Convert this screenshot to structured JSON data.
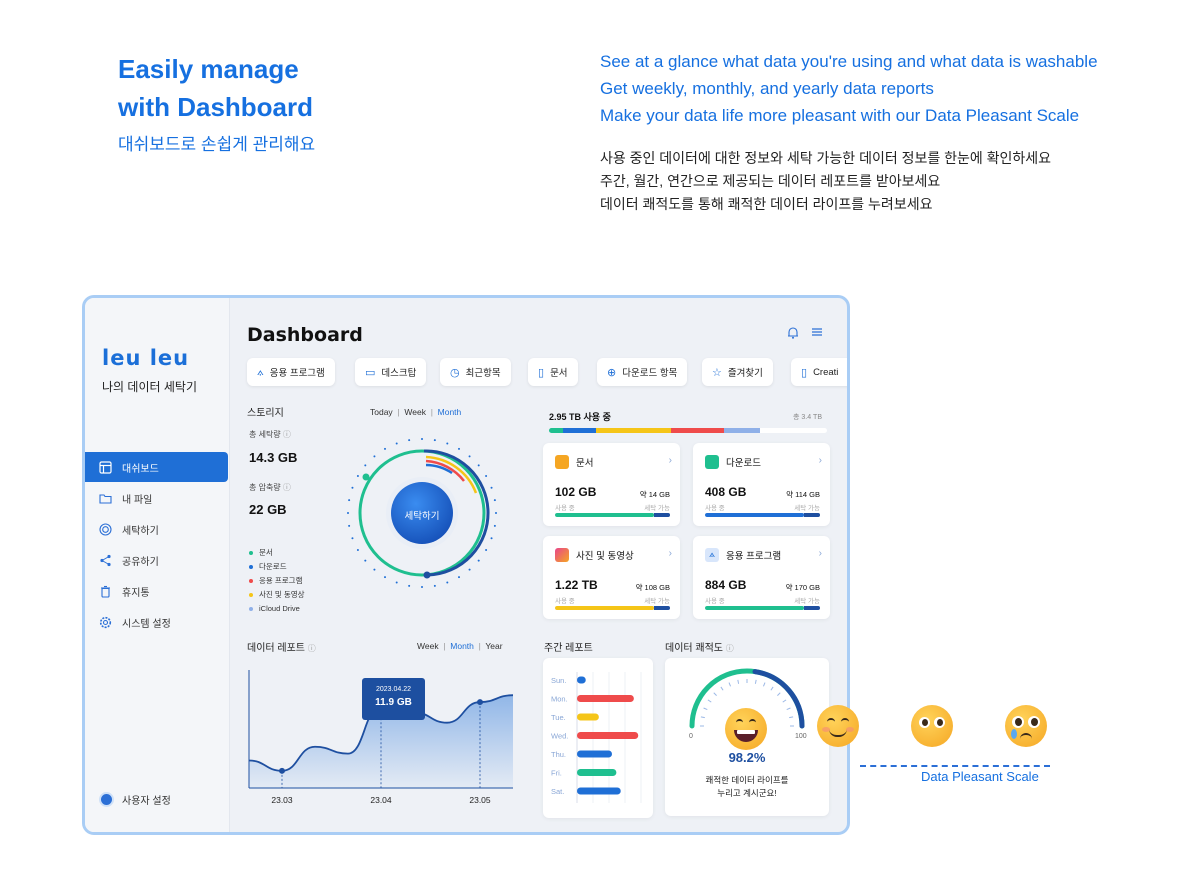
{
  "intro": {
    "title_line1": "Easily manage",
    "title_line2": "with Dashboard",
    "subtitle": "대쉬보드로 손쉽게 관리해요",
    "features_en": [
      "See at a glance what data you're using and what data is washable",
      "Get weekly, monthly, and yearly data reports",
      "Make your data life more pleasant with our Data Pleasant Scale"
    ],
    "features_kr": [
      "사용 중인 데이터에 대한 정보와 세탁 가능한 데이터 정보를 한눈에 확인하세요",
      "주간, 월간, 연간으로 제공되는 데이터 레포트를 받아보세요",
      "데이터 쾌적도를 통해 쾌적한 데이터 라이프를 누려보세요"
    ]
  },
  "sidebar": {
    "logo": "leu leu",
    "app_name": "나의 데이터 세탁기",
    "items": [
      {
        "label": "대쉬보드",
        "icon": "layout-icon",
        "active": true
      },
      {
        "label": "내 파일",
        "icon": "folder-icon",
        "active": false
      },
      {
        "label": "세탁하기",
        "icon": "wash-icon",
        "active": false
      },
      {
        "label": "공유하기",
        "icon": "share-icon",
        "active": false
      },
      {
        "label": "휴지통",
        "icon": "trash-icon",
        "active": false
      },
      {
        "label": "시스템 설정",
        "icon": "gear-icon",
        "active": false
      }
    ],
    "user_settings": "사용자 설정"
  },
  "header": {
    "title": "Dashboard",
    "chips": [
      "응용 프로그램",
      "데스크탑",
      "최근항목",
      "문서",
      "다운로드 항목",
      "즐겨찾기",
      "Creati"
    ]
  },
  "storage": {
    "title": "스토리지",
    "segments": [
      "Today",
      "Week",
      "Month"
    ],
    "active_segment": "Month",
    "total_wash_label": "총 세탁량",
    "total_wash": "14.3 GB",
    "total_compress_label": "총 압축량",
    "total_compress": "22 GB",
    "wash_button": "세탁하기",
    "legend": [
      {
        "label": "문서",
        "color": "#1fbf8f"
      },
      {
        "label": "다운로드",
        "color": "#1f6fd6"
      },
      {
        "label": "응용 프로그램",
        "color": "#ef4b4b"
      },
      {
        "label": "사진 및 동영상",
        "color": "#f5c518"
      },
      {
        "label": "iCloud Drive",
        "color": "#8fb0e8"
      }
    ]
  },
  "usage": {
    "label": "2.95 TB 사용 중",
    "total": "총 3.4 TB",
    "fractions": [
      {
        "color": "#1fbf8f",
        "value": 0.05
      },
      {
        "color": "#1f6fd6",
        "value": 0.12
      },
      {
        "color": "#f5c518",
        "value": 0.27
      },
      {
        "color": "#ef4b4b",
        "value": 0.19
      },
      {
        "color": "#8fb0e8",
        "value": 0.13
      }
    ]
  },
  "file_cards": [
    {
      "name": "문서",
      "size": "102 GB",
      "approx": "약 14 GB",
      "used": "사용 중",
      "washable": "세탁 가능",
      "color": "#1fbf8f",
      "icon": "document-icon",
      "icon_color": "#f5a623",
      "fill": 0.86
    },
    {
      "name": "다운로드",
      "size": "408 GB",
      "approx": "약 114 GB",
      "used": "사용 중",
      "washable": "세탁 가능",
      "color": "#1f6fd6",
      "icon": "download-icon",
      "icon_color": "#1fbf8f",
      "fill": 0.86
    },
    {
      "name": "사진 및 동영상",
      "size": "1.22 TB",
      "approx": "약 108 GB",
      "used": "사용 중",
      "washable": "세탁 가능",
      "color": "#f5c518",
      "icon": "photo-icon",
      "icon_color": "#e8458b",
      "fill": 0.86
    },
    {
      "name": "응용 프로그램",
      "size": "884 GB",
      "approx": "약 170 GB",
      "used": "사용 중",
      "washable": "세탁 가능",
      "color": "#1fbf8f",
      "icon": "app-icon",
      "icon_color": "#1f6fd6",
      "fill": 0.86
    }
  ],
  "report": {
    "title": "데이터 레포트",
    "segments": [
      "Week",
      "Month",
      "Year"
    ],
    "active_segment": "Month",
    "tooltip_date": "2023.04.22",
    "tooltip_value": "11.9 GB"
  },
  "chart_data": [
    {
      "type": "area",
      "x_labels": [
        "23.03",
        "23.04",
        "23.05"
      ],
      "values": [
        4.0,
        2.5,
        6.0,
        5.0,
        11.9,
        11.0,
        9.5,
        12.5,
        13.5
      ],
      "ylim": [
        0,
        16
      ]
    },
    {
      "type": "bar",
      "title": "주간 레포트",
      "categories": [
        "Sun.",
        "Mon.",
        "Tue.",
        "Wed.",
        "Thu.",
        "Fri.",
        "Sat."
      ],
      "values": [
        1,
        6.5,
        2.5,
        7,
        4,
        4.5,
        5
      ],
      "colors": [
        "#1f6fd6",
        "#ef4b4b",
        "#f5c518",
        "#ef4b4b",
        "#1f6fd6",
        "#1fbf8f",
        "#1f6fd6"
      ]
    }
  ],
  "pleasant": {
    "title": "데이터 쾌적도",
    "min": "0",
    "max": "100",
    "value": 98.2,
    "value_label": "98.2%",
    "message_line1": "쾌적한 데이터 라이프를",
    "message_line2": "누리고 계시군요!",
    "scale_label": "Data Pleasant Scale"
  }
}
